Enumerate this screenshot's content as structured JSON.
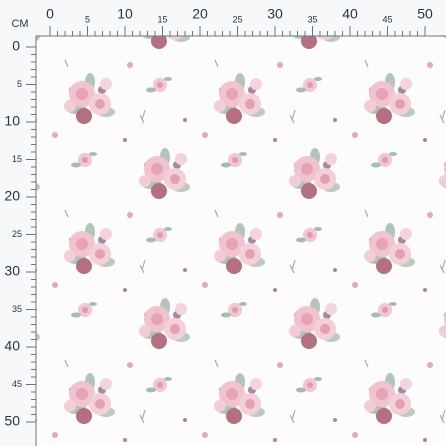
{
  "unit": "CM",
  "top_ruler": {
    "labels": [
      "0",
      "5",
      "10",
      "15",
      "20",
      "25",
      "30",
      "35",
      "40",
      "45",
      "50"
    ]
  },
  "left_ruler": {
    "labels": [
      "0",
      "5",
      "10",
      "15",
      "20",
      "25",
      "30",
      "35",
      "40",
      "45",
      "50"
    ]
  }
}
